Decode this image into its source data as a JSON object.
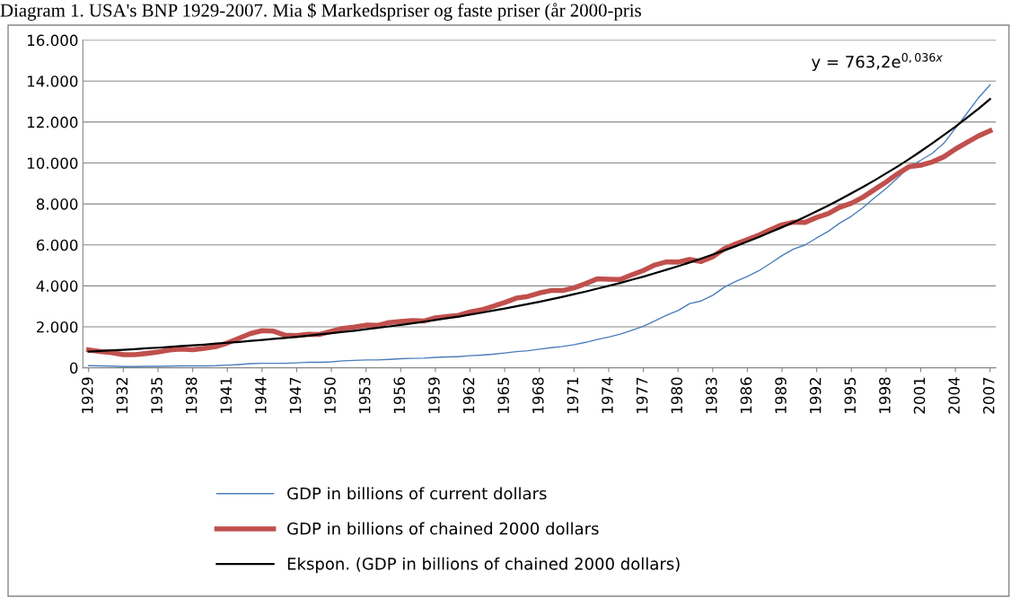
{
  "chart_data": {
    "type": "line",
    "title": "Diagram 1. USA's BNP 1929-2007. Mia $ Markedspriser og faste priser (år 2000-pris",
    "categories": [
      "1929",
      null,
      null,
      "1932",
      null,
      null,
      "1935",
      null,
      null,
      "1938",
      null,
      null,
      "1941",
      null,
      null,
      "1944",
      null,
      null,
      "1947",
      null,
      null,
      "1950",
      null,
      null,
      "1953",
      null,
      null,
      "1956",
      null,
      null,
      "1959",
      null,
      null,
      "1962",
      null,
      null,
      "1965",
      null,
      null,
      "1968",
      null,
      null,
      "1971",
      null,
      null,
      "1974",
      null,
      null,
      "1977",
      null,
      null,
      "1980",
      null,
      null,
      "1983",
      null,
      null,
      "1986",
      null,
      null,
      "1989",
      null,
      null,
      "1992",
      null,
      null,
      "1995",
      null,
      null,
      "1998",
      null,
      null,
      "2001",
      null,
      null,
      "2004",
      null,
      null,
      "2007"
    ],
    "series": [
      {
        "name": "GDP in billions of current dollars",
        "color": "#4a7ebb",
        "values": [
          100,
          90,
          80,
          60,
          60,
          70,
          70,
          80,
          90,
          90,
          90,
          100,
          130,
          160,
          200,
          220,
          220,
          220,
          240,
          270,
          270,
          290,
          340,
          360,
          380,
          380,
          410,
          440,
          460,
          470,
          510,
          530,
          540,
          590,
          620,
          660,
          720,
          790,
          830,
          910,
          980,
          1040,
          1130,
          1240,
          1380,
          1500,
          1640,
          1830,
          2030,
          2290,
          2560,
          2790,
          3130,
          3260,
          3540,
          3930,
          4220,
          4460,
          4740,
          5100,
          5480,
          5800,
          6000,
          6340,
          6660,
          7070,
          7400,
          7820,
          8300,
          8750,
          9270,
          9820,
          10130,
          10470,
          10960,
          11690,
          12420,
          13180,
          13810
        ]
      },
      {
        "name": "GDP in billions of chained 2000 dollars",
        "color": "#c0504d",
        "values": [
          870,
          790,
          740,
          640,
          640,
          700,
          770,
          870,
          910,
          880,
          950,
          1030,
          1210,
          1440,
          1670,
          1810,
          1790,
          1590,
          1570,
          1640,
          1630,
          1780,
          1920,
          1990,
          2080,
          2070,
          2210,
          2260,
          2300,
          2280,
          2440,
          2500,
          2560,
          2720,
          2830,
          3000,
          3190,
          3400,
          3480,
          3650,
          3770,
          3770,
          3900,
          4110,
          4340,
          4320,
          4310,
          4540,
          4750,
          5020,
          5170,
          5160,
          5290,
          5190,
          5420,
          5810,
          6050,
          6260,
          6480,
          6740,
          6980,
          7110,
          7100,
          7340,
          7530,
          7840,
          8030,
          8330,
          8700,
          9070,
          9470,
          9820,
          9890,
          10050,
          10300,
          10680,
          11000,
          11320,
          11570
        ]
      },
      {
        "name": "Ekspon. (GDP in billions of chained 2000 dollars)",
        "color": "#000000",
        "values": [
          790,
          820,
          850,
          880,
          910,
          950,
          980,
          1020,
          1060,
          1090,
          1130,
          1180,
          1220,
          1260,
          1310,
          1360,
          1410,
          1460,
          1510,
          1570,
          1630,
          1690,
          1750,
          1810,
          1880,
          1950,
          2020,
          2090,
          2170,
          2250,
          2330,
          2420,
          2500,
          2600,
          2690,
          2790,
          2890,
          3000,
          3110,
          3220,
          3340,
          3460,
          3590,
          3720,
          3860,
          4000,
          4140,
          4300,
          4450,
          4620,
          4790,
          4960,
          5140,
          5330,
          5530,
          5730,
          5940,
          6160,
          6380,
          6620,
          6860,
          7110,
          7370,
          7640,
          7920,
          8210,
          8520,
          8830,
          9150,
          9490,
          9830,
          10190,
          10570,
          10960,
          11360,
          11770,
          12210,
          12650,
          13120
        ]
      }
    ],
    "ylim": [
      0,
      16000
    ],
    "yticks": [
      0,
      {
        "value": 2000,
        "label": "2.000"
      },
      {
        "value": 4000,
        "label": "4.000"
      },
      {
        "value": 6000,
        "label": "6.000"
      },
      {
        "value": 8000,
        "label": "8.000"
      },
      {
        "value": 10000,
        "label": "10.000"
      },
      {
        "value": 12000,
        "label": "12.000"
      },
      {
        "value": 14000,
        "label": "14.000"
      },
      {
        "value": 16000,
        "label": "16.000"
      }
    ],
    "grid": "y",
    "legend": "bottom",
    "marker": "none",
    "line_style": "solid",
    "annotations": [
      "y = 763,2e$^{0,036x}$"
    ]
  }
}
